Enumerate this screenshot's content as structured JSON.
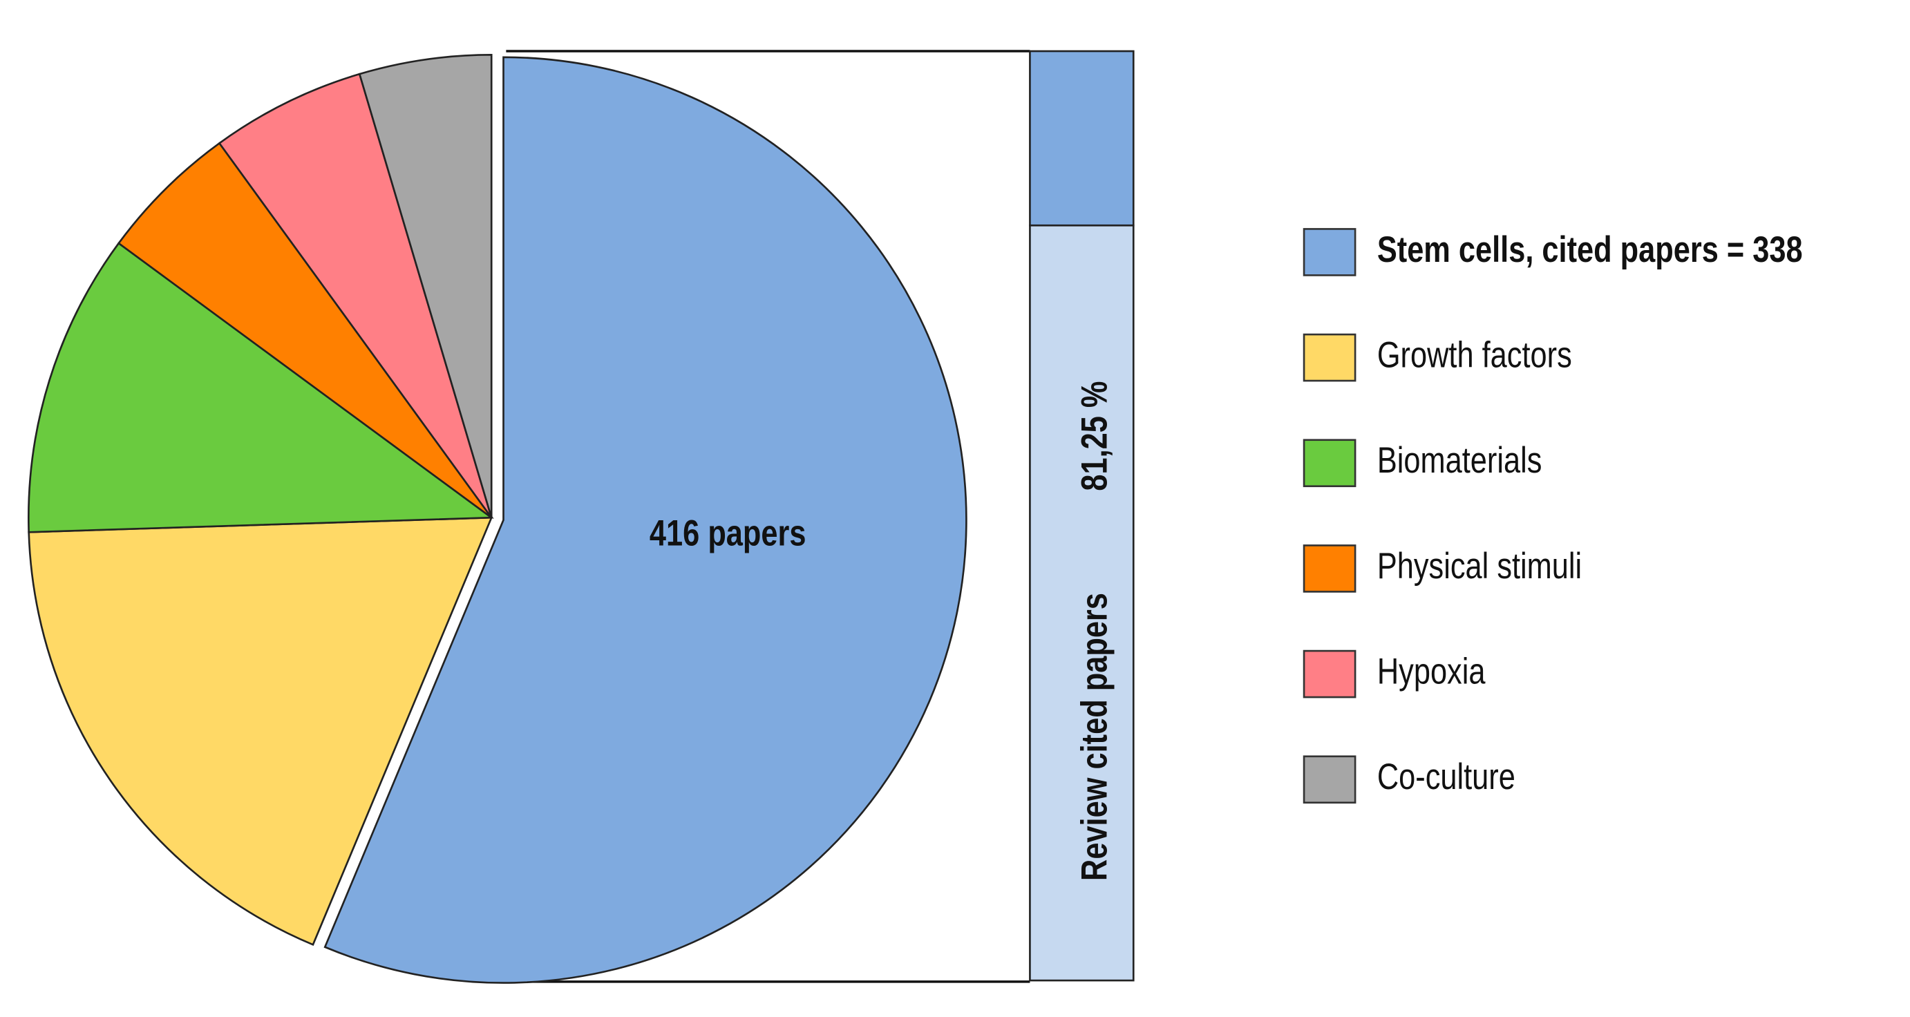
{
  "chart_data": {
    "type": "pie",
    "center_label": "416 papers",
    "categories": [
      "Stem cells, cited papers = 338",
      "Growth factors",
      "Biomaterials",
      "Physical stimuli",
      "Hypoxia",
      "Co-culture"
    ],
    "values": [
      56.3,
      18.2,
      10.6,
      4.9,
      5.4,
      4.6
    ],
    "colors": [
      "#7faadf",
      "#ffd966",
      "#6acb3f",
      "#ff8000",
      "#ff7f86",
      "#a6a6a6"
    ],
    "exploded": 0,
    "legend_bold": 0,
    "legend": "right",
    "stacked_bar": {
      "label": "Review cited papers",
      "ylim": [
        0,
        100
      ],
      "segments": [
        {
          "value": 81.25,
          "value_label": "81,25 %",
          "color": "#c6d9f0"
        },
        {
          "value": 18.75,
          "color": "#7faadf"
        }
      ]
    }
  }
}
